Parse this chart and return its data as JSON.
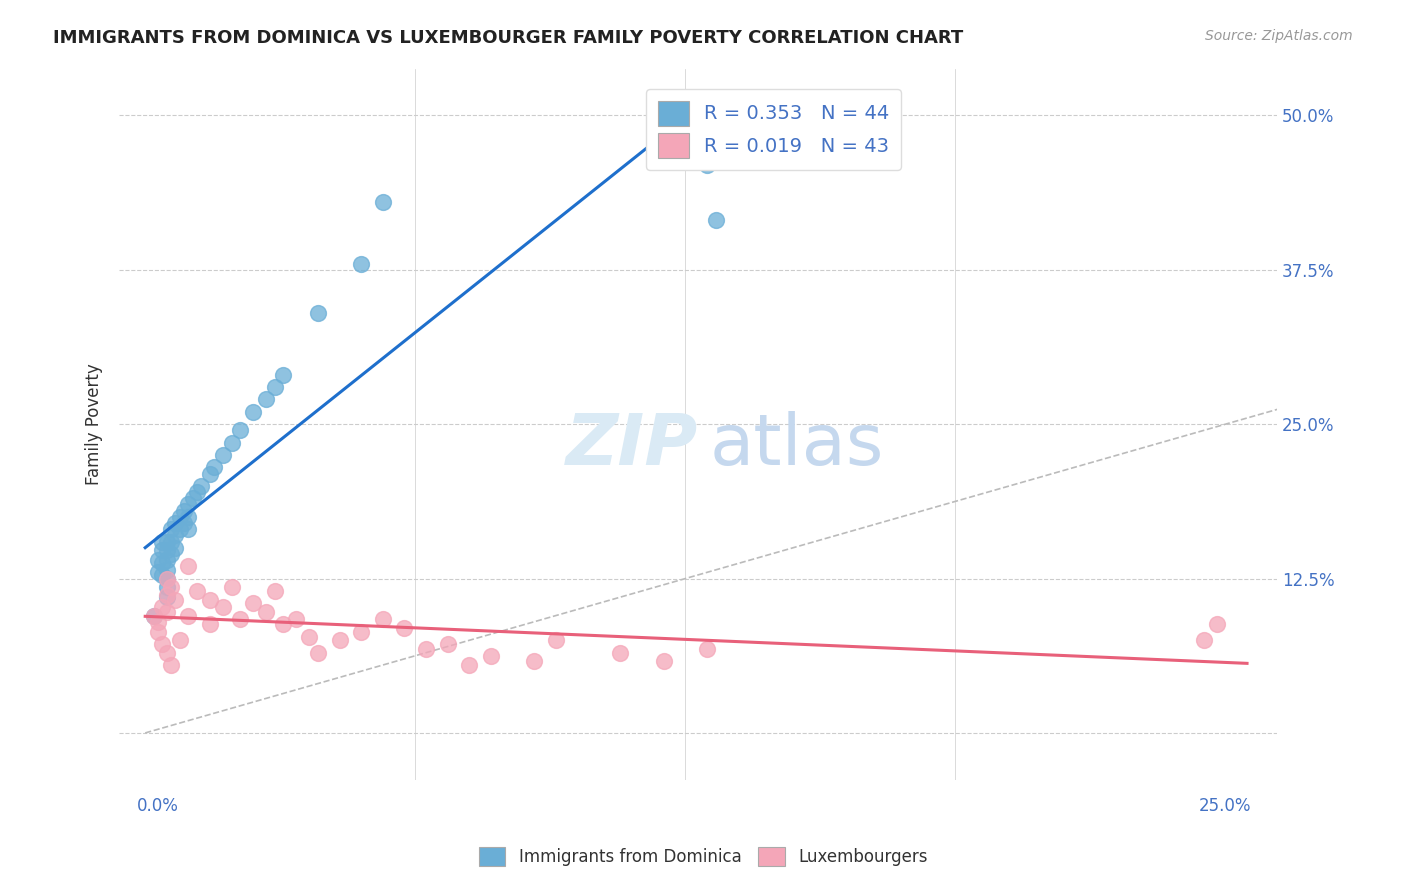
{
  "title": "IMMIGRANTS FROM DOMINICA VS LUXEMBOURGER FAMILY POVERTY CORRELATION CHART",
  "source": "Source: ZipAtlas.com",
  "ylabel": "Family Poverty",
  "legend_R1": "R = 0.353",
  "legend_N1": "N = 44",
  "legend_R2": "R = 0.019",
  "legend_N2": "N = 43",
  "color_blue": "#6aaed6",
  "color_pink": "#f4a6b8",
  "color_blue_line": "#1e6fcc",
  "color_pink_line": "#e8607a",
  "color_diagonal": "#bbbbbb",
  "blue_x": [
    0.002,
    0.003,
    0.003,
    0.004,
    0.004,
    0.004,
    0.004,
    0.005,
    0.005,
    0.005,
    0.005,
    0.005,
    0.005,
    0.005,
    0.006,
    0.006,
    0.006,
    0.007,
    0.007,
    0.007,
    0.008,
    0.008,
    0.009,
    0.009,
    0.01,
    0.01,
    0.01,
    0.011,
    0.012,
    0.013,
    0.015,
    0.016,
    0.018,
    0.02,
    0.022,
    0.025,
    0.028,
    0.03,
    0.032,
    0.04,
    0.05,
    0.055,
    0.13,
    0.132
  ],
  "blue_y": [
    0.095,
    0.14,
    0.13,
    0.155,
    0.148,
    0.138,
    0.128,
    0.155,
    0.148,
    0.14,
    0.132,
    0.125,
    0.118,
    0.11,
    0.165,
    0.155,
    0.145,
    0.17,
    0.16,
    0.15,
    0.175,
    0.165,
    0.18,
    0.17,
    0.185,
    0.175,
    0.165,
    0.19,
    0.195,
    0.2,
    0.21,
    0.215,
    0.225,
    0.235,
    0.245,
    0.26,
    0.27,
    0.28,
    0.29,
    0.34,
    0.38,
    0.43,
    0.46,
    0.415
  ],
  "pink_x": [
    0.002,
    0.003,
    0.003,
    0.004,
    0.004,
    0.005,
    0.005,
    0.005,
    0.005,
    0.006,
    0.006,
    0.007,
    0.008,
    0.01,
    0.01,
    0.012,
    0.015,
    0.015,
    0.018,
    0.02,
    0.022,
    0.025,
    0.028,
    0.03,
    0.032,
    0.035,
    0.038,
    0.04,
    0.045,
    0.05,
    0.055,
    0.06,
    0.065,
    0.07,
    0.075,
    0.08,
    0.09,
    0.095,
    0.11,
    0.12,
    0.13,
    0.245,
    0.248
  ],
  "pink_y": [
    0.095,
    0.09,
    0.082,
    0.102,
    0.072,
    0.125,
    0.112,
    0.098,
    0.065,
    0.118,
    0.055,
    0.108,
    0.075,
    0.135,
    0.095,
    0.115,
    0.108,
    0.088,
    0.102,
    0.118,
    0.092,
    0.105,
    0.098,
    0.115,
    0.088,
    0.092,
    0.078,
    0.065,
    0.075,
    0.082,
    0.092,
    0.085,
    0.068,
    0.072,
    0.055,
    0.062,
    0.058,
    0.075,
    0.065,
    0.058,
    0.068,
    0.075,
    0.088
  ]
}
